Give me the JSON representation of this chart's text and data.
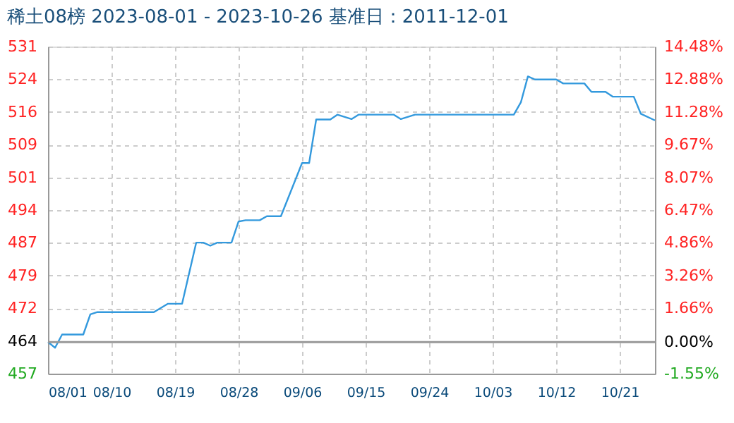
{
  "chart_data": {
    "type": "line",
    "title": "稀土08榜 2023-08-01 - 2023-10-26    基准日：2011-12-01",
    "x": [
      "2023-08-01",
      "2023-08-02",
      "2023-08-03",
      "2023-08-06",
      "2023-08-07",
      "2023-08-08",
      "2023-08-16",
      "2023-08-18",
      "2023-08-20",
      "2023-08-22",
      "2023-08-23",
      "2023-08-24",
      "2023-08-25",
      "2023-08-27",
      "2023-08-28",
      "2023-08-29",
      "2023-08-31",
      "2023-09-01",
      "2023-09-03",
      "2023-09-06",
      "2023-09-07",
      "2023-09-08",
      "2023-09-10",
      "2023-09-11",
      "2023-09-13",
      "2023-09-14",
      "2023-09-19",
      "2023-09-20",
      "2023-09-22",
      "2023-10-06",
      "2023-10-07",
      "2023-10-08",
      "2023-10-09",
      "2023-10-12",
      "2023-10-13",
      "2023-10-16",
      "2023-10-17",
      "2023-10-19",
      "2023-10-20",
      "2023-10-23",
      "2023-10-24",
      "2023-10-26"
    ],
    "series": [
      {
        "color": "#3399dd",
        "values": [
          464.0,
          462.7,
          465.7,
          465.7,
          470.3,
          470.8,
          470.8,
          472.7,
          472.7,
          486.6,
          486.6,
          485.9,
          486.6,
          486.6,
          491.4,
          491.7,
          491.7,
          492.6,
          492.6,
          504.7,
          504.7,
          514.6,
          514.6,
          515.7,
          514.7,
          515.7,
          515.7,
          514.7,
          515.7,
          515.7,
          518.5,
          524.4,
          523.7,
          523.7,
          522.8,
          522.8,
          520.9,
          520.9,
          519.8,
          519.8,
          515.9,
          514.4
        ]
      }
    ],
    "xlim": [
      "2023-08-01",
      "2023-10-26"
    ],
    "xticks": [
      {
        "value": "2023-08-01",
        "label": "08/01"
      },
      {
        "value": "2023-08-10",
        "label": "08/10"
      },
      {
        "value": "2023-08-19",
        "label": "08/19"
      },
      {
        "value": "2023-08-28",
        "label": "08/28"
      },
      {
        "value": "2023-09-06",
        "label": "09/06"
      },
      {
        "value": "2023-09-15",
        "label": "09/15"
      },
      {
        "value": "2023-09-24",
        "label": "09/24"
      },
      {
        "value": "2023-10-03",
        "label": "10/03"
      },
      {
        "value": "2023-10-12",
        "label": "10/12"
      },
      {
        "value": "2023-10-21",
        "label": "10/21"
      }
    ],
    "ylim": [
      456.8,
      531.2
    ],
    "yticks": [
      {
        "value": 456.8,
        "label": "457"
      },
      {
        "value": 464.24,
        "label": "464"
      },
      {
        "value": 471.68,
        "label": "472"
      },
      {
        "value": 479.12,
        "label": "479"
      },
      {
        "value": 486.56,
        "label": "487"
      },
      {
        "value": 494.0,
        "label": "494"
      },
      {
        "value": 501.44,
        "label": "501"
      },
      {
        "value": 508.88,
        "label": "509"
      },
      {
        "value": 516.32,
        "label": "516"
      },
      {
        "value": 523.76,
        "label": "524"
      },
      {
        "value": 531.2,
        "label": "531"
      }
    ],
    "y2lim": [
      -1.55,
      14.48
    ],
    "y2ticks": [
      {
        "value": -1.55,
        "label": "-1.55%"
      },
      {
        "value": 0,
        "label": "0.00%"
      },
      {
        "value": 1.66,
        "label": "1.66%"
      },
      {
        "value": 3.26,
        "label": "3.26%"
      },
      {
        "value": 4.86,
        "label": "4.86%"
      },
      {
        "value": 6.47,
        "label": "6.47%"
      },
      {
        "value": 8.07,
        "label": "8.07%"
      },
      {
        "value": 9.67,
        "label": "9.67%"
      },
      {
        "value": 11.28,
        "label": "11.28%"
      },
      {
        "value": 12.88,
        "label": "12.88%"
      },
      {
        "value": 14.48,
        "label": "14.48%"
      }
    ],
    "ref_lines": [
      {
        "axis": "y2",
        "value": 0,
        "color": "#999999"
      }
    ],
    "grid": true,
    "marker": "none",
    "line_style": "solid"
  }
}
